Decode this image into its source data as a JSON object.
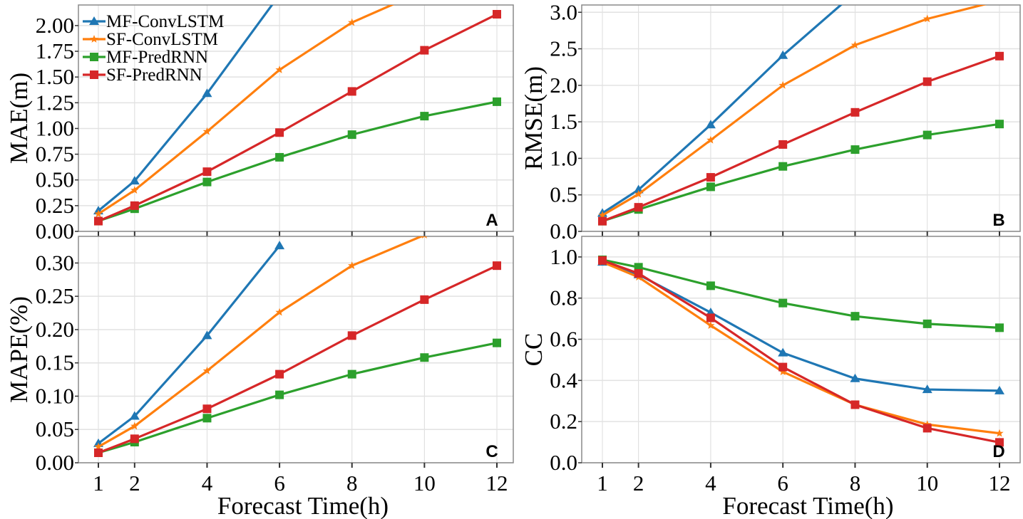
{
  "chart_data": [
    {
      "type": "line",
      "panel_label": "A",
      "ylabel": "MAE(m)",
      "xlabel": "",
      "x": [
        1,
        2,
        4,
        6,
        8,
        10,
        12
      ],
      "xticks": [
        "1",
        "2",
        "4",
        "6",
        "8",
        "10",
        "12"
      ],
      "ylim": [
        0,
        2.2
      ],
      "yticks": [
        0,
        0.25,
        0.5,
        0.75,
        1.0,
        1.25,
        1.5,
        1.75,
        2.0
      ],
      "ytick_labels": [
        "0.00",
        "0.25",
        "0.50",
        "0.75",
        "1.00",
        "1.25",
        "1.50",
        "1.75",
        "2.00"
      ],
      "grid": true,
      "legend": "top-left",
      "series": [
        {
          "name": "MF-ConvLSTM",
          "values": [
            0.2,
            0.49,
            1.34,
            2.3,
            null,
            null,
            null
          ]
        },
        {
          "name": "SF-ConvLSTM",
          "values": [
            0.17,
            0.4,
            0.97,
            1.57,
            2.03,
            2.34,
            null
          ]
        },
        {
          "name": "MF-PredRNN",
          "values": [
            0.1,
            0.22,
            0.48,
            0.72,
            0.94,
            1.12,
            1.26
          ]
        },
        {
          "name": "SF-PredRNN",
          "values": [
            0.1,
            0.25,
            0.58,
            0.96,
            1.36,
            1.76,
            2.11
          ]
        }
      ]
    },
    {
      "type": "line",
      "panel_label": "B",
      "ylabel": "RMSE(m)",
      "xlabel": "",
      "x": [
        1,
        2,
        4,
        6,
        8,
        10,
        12
      ],
      "xticks": [
        "1",
        "2",
        "4",
        "6",
        "8",
        "10",
        "12"
      ],
      "ylim": [
        0,
        3.1
      ],
      "yticks": [
        0,
        0.5,
        1.0,
        1.5,
        2.0,
        2.5,
        3.0
      ],
      "ytick_labels": [
        "0.0",
        "0.5",
        "1.0",
        "1.5",
        "2.0",
        "2.5",
        "3.0"
      ],
      "grid": true,
      "series": [
        {
          "name": "MF-ConvLSTM",
          "values": [
            0.25,
            0.57,
            1.46,
            2.41,
            3.27,
            null,
            null
          ]
        },
        {
          "name": "SF-ConvLSTM",
          "values": [
            0.22,
            0.51,
            1.25,
            2.0,
            2.55,
            2.91,
            3.16
          ]
        },
        {
          "name": "MF-PredRNN",
          "values": [
            0.14,
            0.3,
            0.61,
            0.89,
            1.12,
            1.32,
            1.47
          ]
        },
        {
          "name": "SF-PredRNN",
          "values": [
            0.14,
            0.33,
            0.74,
            1.19,
            1.63,
            2.05,
            2.4
          ]
        }
      ]
    },
    {
      "type": "line",
      "panel_label": "C",
      "ylabel": "MAPE(%)",
      "xlabel": "Forecast Time(h)",
      "x": [
        1,
        2,
        4,
        6,
        8,
        10,
        12
      ],
      "xticks": [
        "1",
        "2",
        "4",
        "6",
        "8",
        "10",
        "12"
      ],
      "ylim": [
        0,
        0.34
      ],
      "yticks": [
        0,
        0.05,
        0.1,
        0.15,
        0.2,
        0.25,
        0.3
      ],
      "ytick_labels": [
        "0.00",
        "0.05",
        "0.10",
        "0.15",
        "0.20",
        "0.25",
        "0.30"
      ],
      "grid": true,
      "series": [
        {
          "name": "MF-ConvLSTM",
          "values": [
            0.029,
            0.07,
            0.191,
            0.326,
            null,
            null,
            null
          ]
        },
        {
          "name": "SF-ConvLSTM",
          "values": [
            0.024,
            0.055,
            0.138,
            0.226,
            0.296,
            0.342,
            null
          ]
        },
        {
          "name": "MF-PredRNN",
          "values": [
            0.015,
            0.031,
            0.067,
            0.102,
            0.133,
            0.158,
            0.18
          ]
        },
        {
          "name": "SF-PredRNN",
          "values": [
            0.015,
            0.036,
            0.081,
            0.133,
            0.191,
            0.245,
            0.296
          ]
        }
      ]
    },
    {
      "type": "line",
      "panel_label": "D",
      "ylabel": "CC",
      "xlabel": "Forecast Time(h)",
      "x": [
        1,
        2,
        4,
        6,
        8,
        10,
        12
      ],
      "xticks": [
        "1",
        "2",
        "4",
        "6",
        "8",
        "10",
        "12"
      ],
      "ylim": [
        0,
        1.1
      ],
      "yticks": [
        0,
        0.2,
        0.4,
        0.6,
        0.8,
        1.0
      ],
      "ytick_labels": [
        "0.0",
        "0.2",
        "0.4",
        "0.6",
        "0.8",
        "1.0"
      ],
      "grid": true,
      "series": [
        {
          "name": "MF-ConvLSTM",
          "values": [
            0.975,
            0.914,
            0.73,
            0.534,
            0.409,
            0.356,
            0.35
          ]
        },
        {
          "name": "SF-ConvLSTM",
          "values": [
            0.975,
            0.902,
            0.667,
            0.442,
            0.282,
            0.186,
            0.143
          ]
        },
        {
          "name": "MF-PredRNN",
          "values": [
            0.986,
            0.95,
            0.86,
            0.776,
            0.712,
            0.675,
            0.656
          ]
        },
        {
          "name": "SF-PredRNN",
          "values": [
            0.983,
            0.92,
            0.704,
            0.465,
            0.282,
            0.168,
            0.099
          ]
        }
      ]
    }
  ],
  "legend": {
    "entries": [
      "MF-ConvLSTM",
      "SF-ConvLSTM",
      "MF-PredRNN",
      "SF-PredRNN"
    ]
  },
  "styles": {
    "colors": {
      "MF-ConvLSTM": "#1f77b4",
      "SF-ConvLSTM": "#ff7f0e",
      "MF-PredRNN": "#2ca02c",
      "SF-PredRNN": "#d62728"
    },
    "markers": {
      "MF-ConvLSTM": "triangle",
      "SF-ConvLSTM": "star",
      "MF-PredRNN": "square",
      "SF-PredRNN": "square"
    }
  }
}
